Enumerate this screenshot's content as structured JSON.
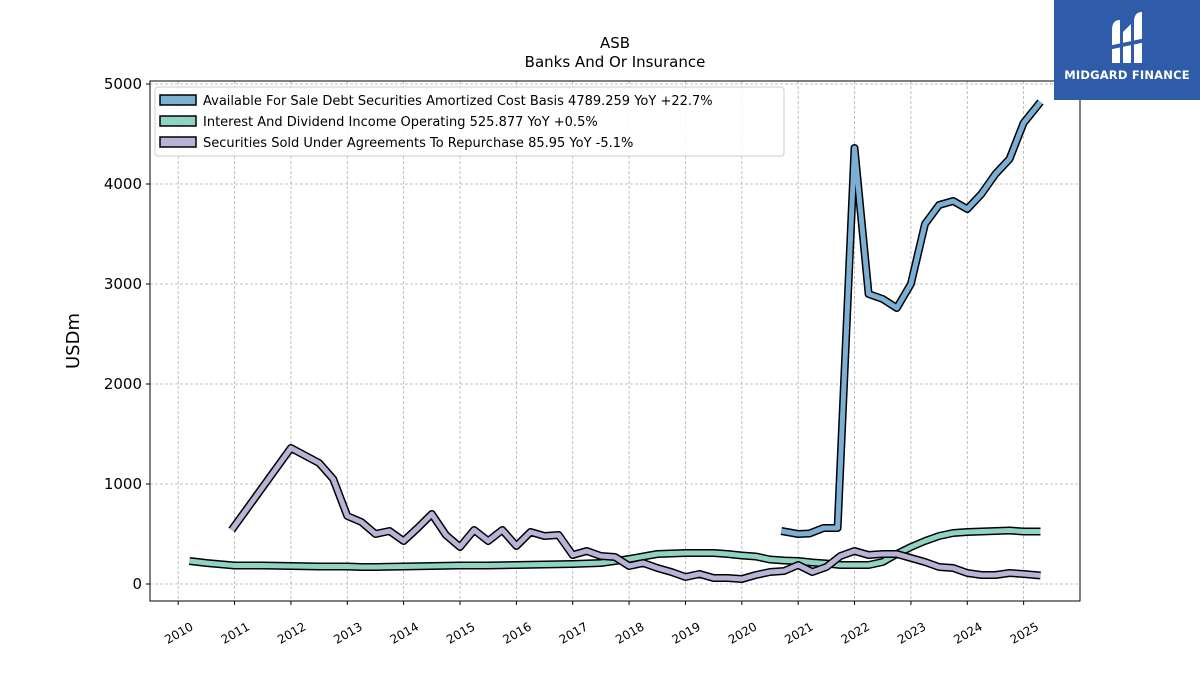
{
  "chart_data": {
    "type": "line",
    "title": "ASB",
    "subtitle": "Banks And Or Insurance",
    "ylabel": "USDm",
    "xlabel": "",
    "ylim": [
      -170,
      5030
    ],
    "xlim": [
      2009.5,
      2026.0
    ],
    "yticks": [
      0,
      1000,
      2000,
      3000,
      4000,
      5000
    ],
    "xticks": [
      2010,
      2011,
      2012,
      2013,
      2014,
      2015,
      2016,
      2017,
      2018,
      2019,
      2020,
      2021,
      2022,
      2023,
      2024,
      2025
    ],
    "grid": true,
    "legend_position": "top-left",
    "series": [
      {
        "name": "Available For Sale Debt Securities Amortized Cost Basis",
        "legend_label": "Available For Sale Debt Securities Amortized Cost Basis  4789.259 YoY +22.7%",
        "color": "#7bafd4",
        "x": [
          2020.7,
          2021.0,
          2021.2,
          2021.45,
          2021.7,
          2022.0,
          2022.25,
          2022.5,
          2022.75,
          2023.0,
          2023.25,
          2023.5,
          2023.75,
          2024.0,
          2024.25,
          2024.5,
          2024.75,
          2025.0,
          2025.3
        ],
        "y": [
          530,
          500,
          505,
          560,
          560,
          4360,
          2900,
          2850,
          2760,
          3000,
          3600,
          3790,
          3830,
          3750,
          3900,
          4100,
          4250,
          4610,
          4820
        ]
      },
      {
        "name": "Interest And Dividend Income Operating",
        "legend_label": "Interest And Dividend Income Operating  525.877 YoY +0.5%",
        "color": "#8fd3c3",
        "x": [
          2010.2,
          2010.5,
          2011.0,
          2011.5,
          2012.0,
          2012.5,
          2013.0,
          2013.25,
          2013.5,
          2014.0,
          2014.5,
          2015.0,
          2015.5,
          2016.0,
          2016.5,
          2017.0,
          2017.5,
          2018.0,
          2018.5,
          2019.0,
          2019.5,
          2019.75,
          2020.0,
          2020.25,
          2020.5,
          2020.75,
          2021.0,
          2021.25,
          2021.5,
          2021.75,
          2022.0,
          2022.25,
          2022.5,
          2022.75,
          2023.0,
          2023.25,
          2023.5,
          2023.75,
          2024.0,
          2024.25,
          2024.5,
          2024.75,
          2025.0,
          2025.3
        ],
        "y": [
          230,
          210,
          185,
          185,
          180,
          175,
          175,
          170,
          170,
          175,
          180,
          185,
          185,
          190,
          195,
          200,
          210,
          250,
          300,
          310,
          310,
          300,
          285,
          275,
          245,
          235,
          230,
          215,
          205,
          190,
          190,
          190,
          220,
          300,
          370,
          430,
          480,
          510,
          520,
          525,
          530,
          535,
          525,
          525
        ]
      },
      {
        "name": "Securities Sold Under Agreements To Repurchase",
        "legend_label": "Securities Sold Under Agreements To Repurchase  85.95 YoY -5.1%",
        "color": "#b8b4d8",
        "x": [
          2010.95,
          2012.0,
          2012.5,
          2012.75,
          2013.0,
          2013.25,
          2013.5,
          2013.75,
          2014.0,
          2014.25,
          2014.5,
          2014.75,
          2015.0,
          2015.25,
          2015.5,
          2015.75,
          2016.0,
          2016.25,
          2016.5,
          2016.75,
          2017.0,
          2017.25,
          2017.5,
          2017.75,
          2018.0,
          2018.25,
          2018.5,
          2018.75,
          2019.0,
          2019.25,
          2019.5,
          2019.75,
          2020.0,
          2020.25,
          2020.5,
          2020.75,
          2021.0,
          2021.25,
          2021.5,
          2021.75,
          2022.0,
          2022.25,
          2022.5,
          2022.75,
          2023.0,
          2023.25,
          2023.5,
          2023.75,
          2024.0,
          2024.25,
          2024.5,
          2024.75,
          2025.0,
          2025.3
        ],
        "y": [
          540,
          1360,
          1210,
          1050,
          680,
          620,
          500,
          530,
          430,
          560,
          700,
          490,
          370,
          540,
          430,
          540,
          380,
          520,
          480,
          490,
          290,
          330,
          280,
          270,
          180,
          210,
          160,
          120,
          70,
          100,
          60,
          60,
          50,
          90,
          120,
          130,
          190,
          120,
          170,
          280,
          330,
          290,
          300,
          300,
          260,
          220,
          170,
          160,
          110,
          90,
          90,
          110,
          100,
          85
        ]
      }
    ]
  },
  "logo": {
    "text": "MIDGARD FINANCE",
    "icon": "midgard-logo-icon"
  }
}
